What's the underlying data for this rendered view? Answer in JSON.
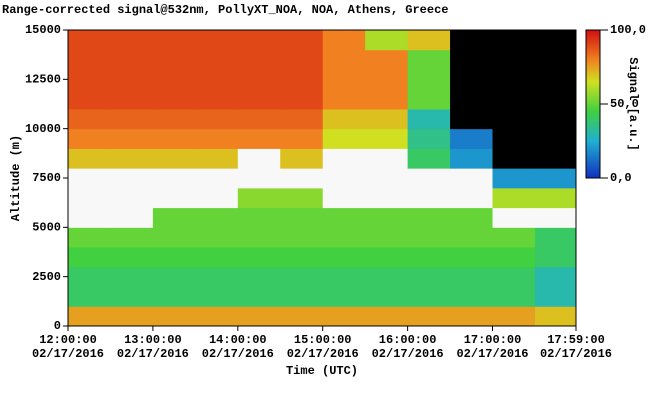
{
  "chart_data": {
    "type": "heatmap",
    "title": "Range-corrected signal@532nm, PollyXT_NOA, NOA, Athens, Greece",
    "xlabel": "Time (UTC)",
    "ylabel": "Altitude (m)",
    "colorbar_label": "Signal [a.u.]",
    "x": [
      12.25,
      12.75,
      13.25,
      13.75,
      14.25,
      14.75,
      15.25,
      15.75,
      16.25,
      16.75,
      17.25,
      17.75
    ],
    "y": [
      500,
      1500,
      2500,
      3500,
      4500,
      5500,
      6500,
      7500,
      8500,
      9500,
      10500,
      11500,
      12500,
      13500,
      14500
    ],
    "z": [
      [
        75,
        75,
        75,
        75,
        75,
        75,
        75,
        75,
        75,
        75,
        75,
        70
      ],
      [
        40,
        40,
        40,
        40,
        40,
        40,
        40,
        40,
        40,
        40,
        40,
        30
      ],
      [
        40,
        40,
        40,
        40,
        40,
        40,
        40,
        40,
        40,
        40,
        40,
        30
      ],
      [
        45,
        45,
        45,
        45,
        45,
        45,
        45,
        45,
        45,
        45,
        45,
        40
      ],
      [
        50,
        50,
        50,
        50,
        50,
        50,
        50,
        50,
        50,
        50,
        50,
        40
      ],
      [
        110,
        110,
        50,
        50,
        50,
        50,
        50,
        50,
        50,
        50,
        110,
        110
      ],
      [
        110,
        110,
        110,
        110,
        55,
        55,
        110,
        110,
        110,
        110,
        60,
        60
      ],
      [
        110,
        110,
        110,
        110,
        110,
        110,
        110,
        110,
        110,
        110,
        20,
        20
      ],
      [
        70,
        70,
        70,
        70,
        110,
        70,
        110,
        110,
        40,
        20,
        -5,
        -5
      ],
      [
        80,
        80,
        80,
        80,
        80,
        80,
        65,
        65,
        35,
        15,
        -5,
        -5
      ],
      [
        85,
        85,
        85,
        85,
        85,
        85,
        70,
        70,
        30,
        -5,
        -5,
        -5
      ],
      [
        90,
        90,
        90,
        90,
        90,
        90,
        80,
        80,
        50,
        -5,
        -5,
        -5
      ],
      [
        90,
        90,
        90,
        90,
        90,
        90,
        80,
        80,
        50,
        -5,
        -5,
        -5
      ],
      [
        90,
        90,
        90,
        90,
        90,
        90,
        80,
        80,
        50,
        -5,
        -5,
        -5
      ],
      [
        90,
        90,
        90,
        90,
        90,
        90,
        80,
        60,
        70,
        -5,
        -5,
        -5
      ]
    ],
    "xlim": [
      12,
      17.9833
    ],
    "xticks": [
      {
        "value": 12,
        "label": "12:00:00\n02/17/2016"
      },
      {
        "value": 13,
        "label": "13:00:00\n02/17/2016"
      },
      {
        "value": 14,
        "label": "14:00:00\n02/17/2016"
      },
      {
        "value": 15,
        "label": "15:00:00\n02/17/2016"
      },
      {
        "value": 16,
        "label": "16:00:00\n02/17/2016"
      },
      {
        "value": 17,
        "label": "17:00:00\n02/17/2016"
      },
      {
        "value": 17.9833,
        "label": "17:59:00\n02/17/2016"
      }
    ],
    "ylim": [
      0,
      15000
    ],
    "yticks": [
      0,
      2500,
      5000,
      7500,
      10000,
      12500,
      15000
    ],
    "clim": [
      0,
      100
    ],
    "cticks": [
      {
        "value": 0,
        "label": "0,0"
      },
      {
        "value": 50,
        "label": "50,0"
      },
      {
        "value": 100,
        "label": "100,0"
      }
    ]
  }
}
